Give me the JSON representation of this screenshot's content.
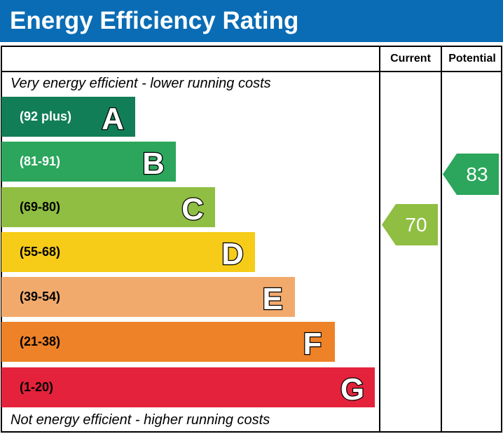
{
  "title": "Energy Efficiency Rating",
  "chart_data": {
    "type": "bar",
    "title": "Energy Efficiency Rating",
    "columns": [
      "Current",
      "Potential"
    ],
    "top_caption": "Very energy efficient - lower running costs",
    "bottom_caption": "Not energy efficient - higher running costs",
    "bands": [
      {
        "letter": "A",
        "range": "(92 plus)",
        "color": "#117e58",
        "text": "#fff"
      },
      {
        "letter": "B",
        "range": "(81-91)",
        "color": "#2ba65c",
        "text": "#fff"
      },
      {
        "letter": "C",
        "range": "(69-80)",
        "color": "#8fbe42",
        "text": "#000"
      },
      {
        "letter": "D",
        "range": "(55-68)",
        "color": "#f6cc18",
        "text": "#000"
      },
      {
        "letter": "E",
        "range": "(39-54)",
        "color": "#f2aa6c",
        "text": "#000"
      },
      {
        "letter": "F",
        "range": "(21-38)",
        "color": "#ee8228",
        "text": "#000"
      },
      {
        "letter": "G",
        "range": "(1-20)",
        "color": "#e4223b",
        "text": "#000"
      }
    ],
    "current": {
      "value": "70",
      "band": "C",
      "color": "#8fbe42"
    },
    "potential": {
      "value": "83",
      "band": "B",
      "color": "#2ba65c"
    }
  }
}
